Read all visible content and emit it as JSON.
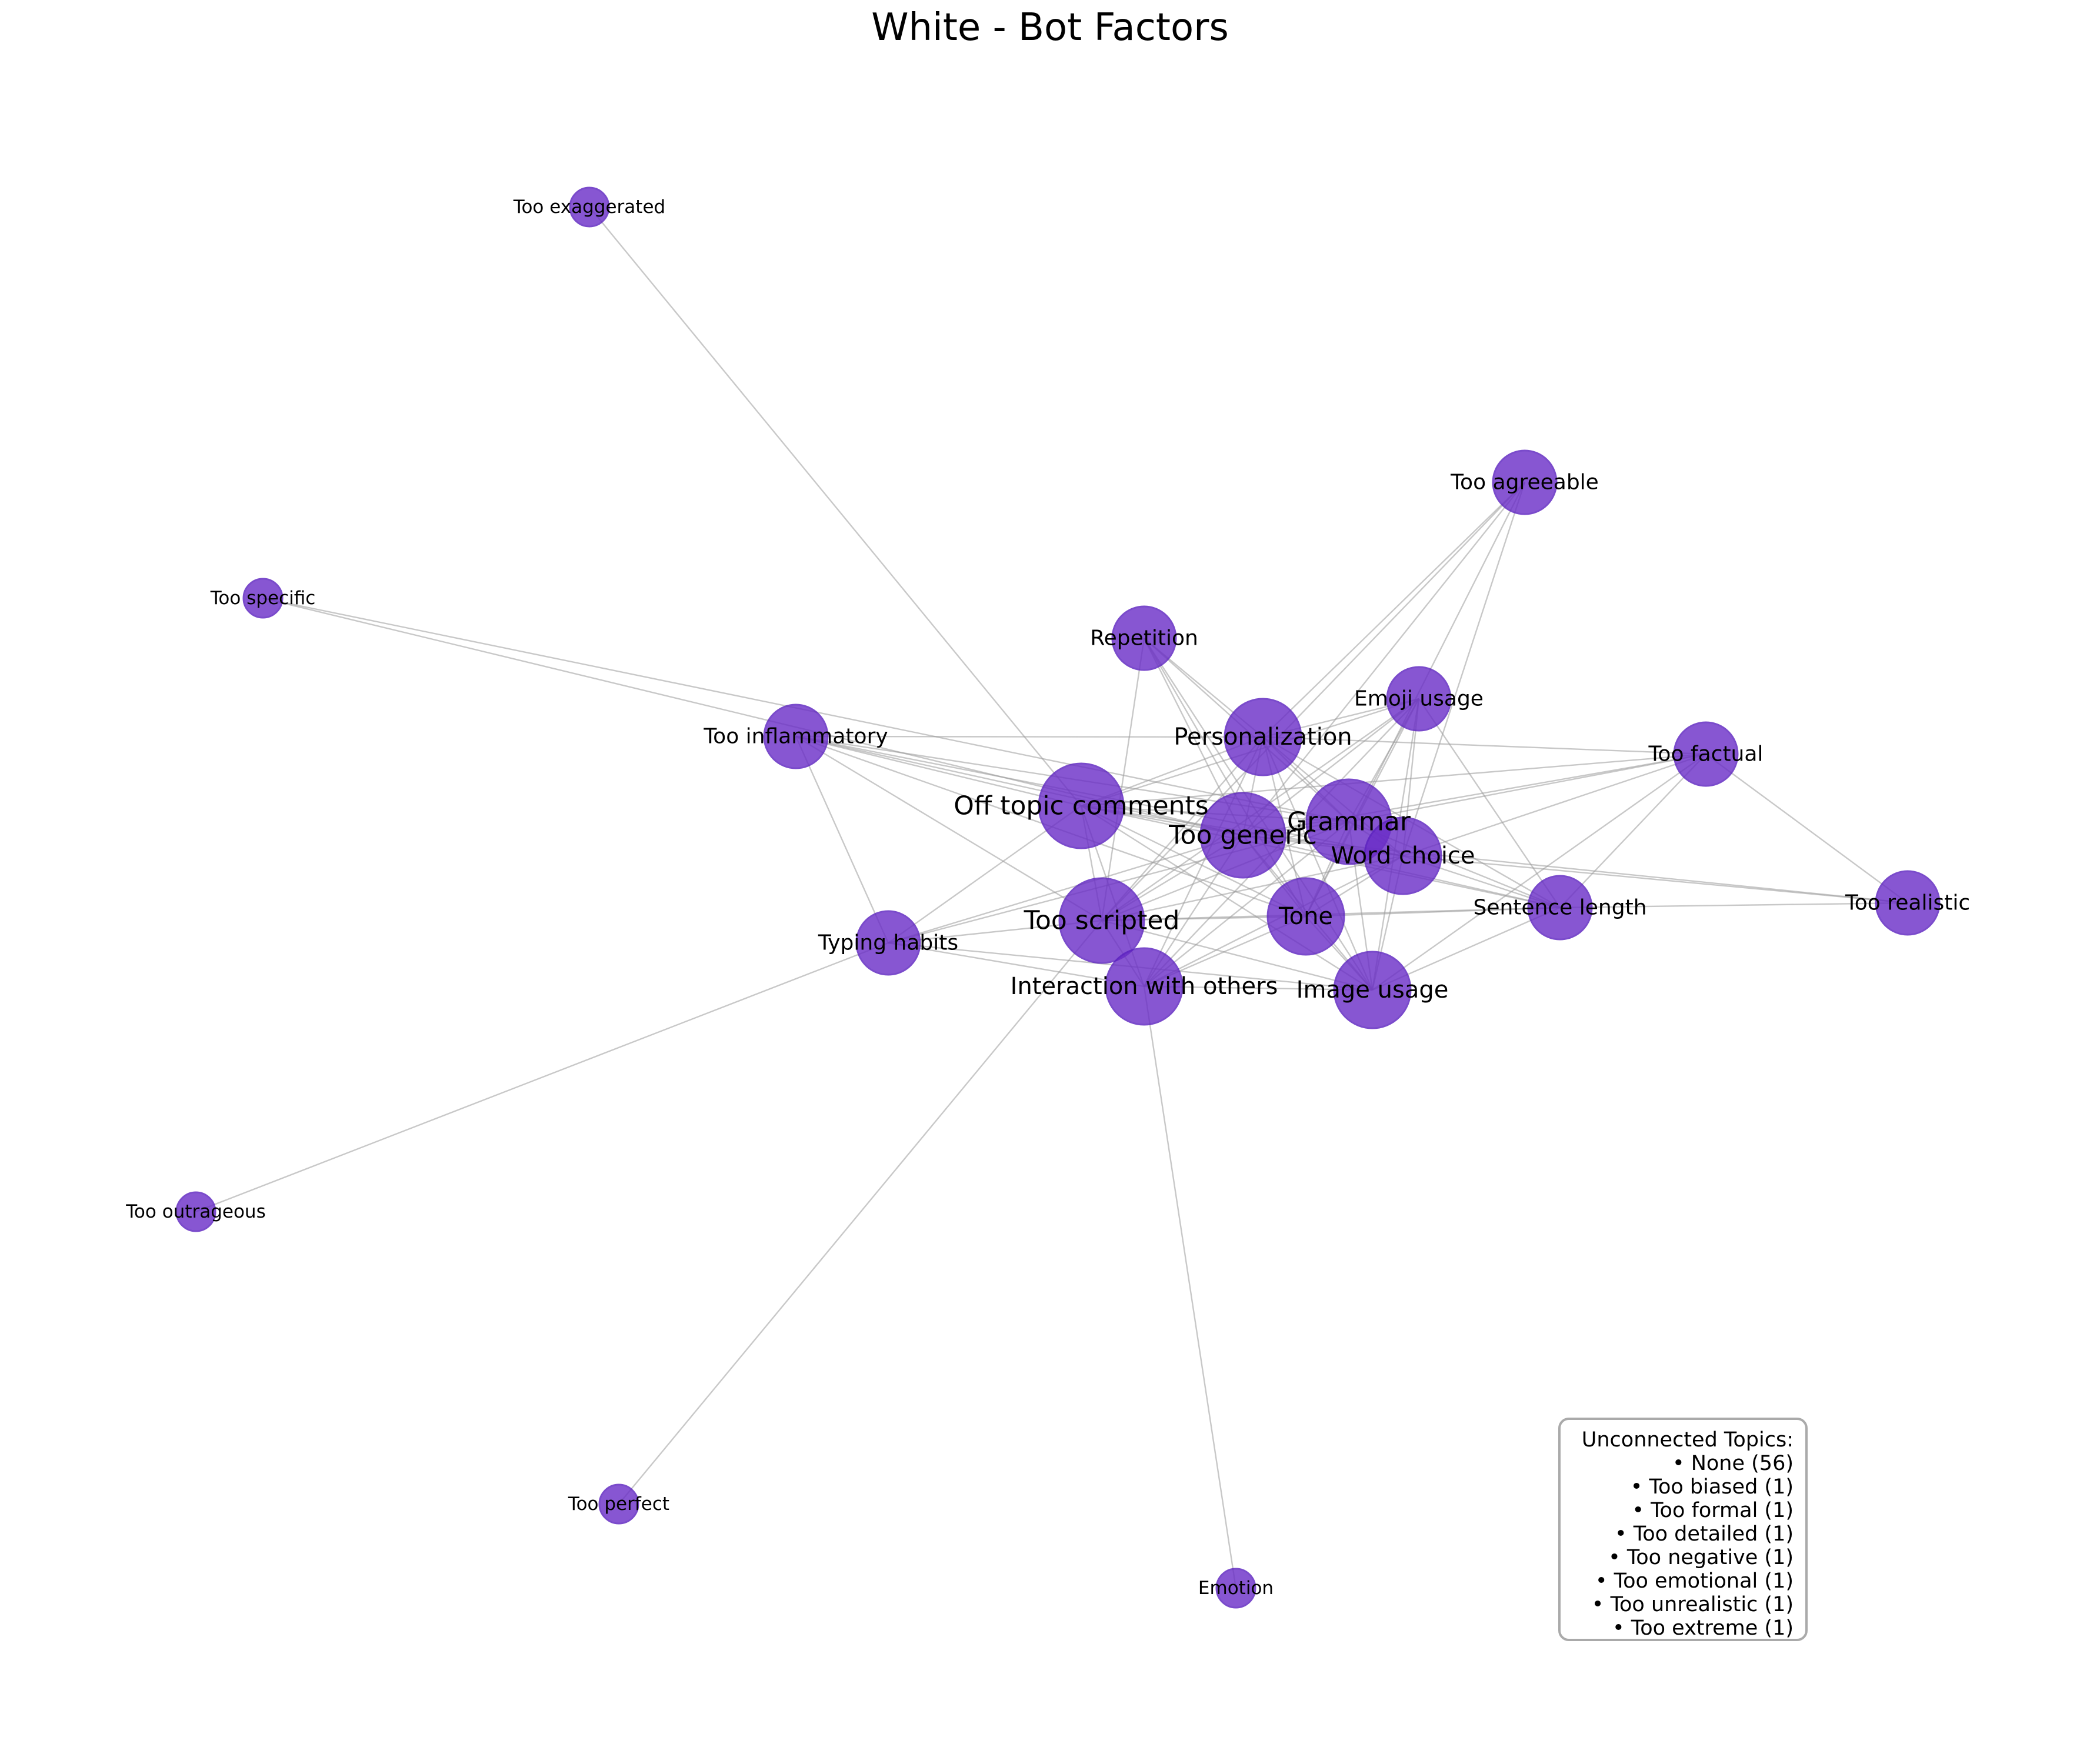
{
  "title": "White - Bot Factors",
  "colors": {
    "node_fill": "#6a2cc7",
    "node_stroke": "#5a1fbf",
    "edge": "#9a9a9a",
    "legend_border": "#aaaaaa"
  },
  "nodes": [
    {
      "id": "too-exaggerated",
      "label": "Too exaggerated",
      "size": "small"
    },
    {
      "id": "too-agreeable",
      "label": "Too agreeable",
      "size": "medium"
    },
    {
      "id": "too-specific",
      "label": "Too specific",
      "size": "small"
    },
    {
      "id": "repetition",
      "label": "Repetition",
      "size": "medium"
    },
    {
      "id": "emoji-usage",
      "label": "Emoji usage",
      "size": "medium"
    },
    {
      "id": "too-inflammatory",
      "label": "Too inflammatory",
      "size": "medium"
    },
    {
      "id": "personalization",
      "label": "Personalization",
      "size": "large"
    },
    {
      "id": "too-factual",
      "label": "Too factual",
      "size": "medium"
    },
    {
      "id": "off-topic-comments",
      "label": "Off topic comments",
      "size": "xlarge"
    },
    {
      "id": "grammar",
      "label": "Grammar",
      "size": "xlarge"
    },
    {
      "id": "too-generic",
      "label": "Too generic",
      "size": "xlarge"
    },
    {
      "id": "word-choice",
      "label": "Word choice",
      "size": "large"
    },
    {
      "id": "too-realistic",
      "label": "Too realistic",
      "size": "medium"
    },
    {
      "id": "sentence-length",
      "label": "Sentence length",
      "size": "medium"
    },
    {
      "id": "tone",
      "label": "Tone",
      "size": "large"
    },
    {
      "id": "too-scripted",
      "label": "Too scripted",
      "size": "xlarge"
    },
    {
      "id": "typing-habits",
      "label": "Typing habits",
      "size": "medium"
    },
    {
      "id": "interaction-with-others",
      "label": "Interaction with others",
      "size": "large"
    },
    {
      "id": "image-usage",
      "label": "Image usage",
      "size": "large"
    },
    {
      "id": "too-outrageous",
      "label": "Too outrageous",
      "size": "small"
    },
    {
      "id": "too-perfect",
      "label": "Too perfect",
      "size": "small"
    },
    {
      "id": "emotion",
      "label": "Emotion",
      "size": "small"
    }
  ],
  "edges": [
    [
      "too-exaggerated",
      "off-topic-comments"
    ],
    [
      "too-specific",
      "too-generic"
    ],
    [
      "too-specific",
      "grammar"
    ],
    [
      "too-agreeable",
      "personalization"
    ],
    [
      "too-agreeable",
      "too-generic"
    ],
    [
      "too-agreeable",
      "word-choice"
    ],
    [
      "too-agreeable",
      "too-scripted"
    ],
    [
      "too-agreeable",
      "tone"
    ],
    [
      "repetition",
      "personalization"
    ],
    [
      "repetition",
      "too-generic"
    ],
    [
      "repetition",
      "grammar"
    ],
    [
      "repetition",
      "too-scripted"
    ],
    [
      "repetition",
      "tone"
    ],
    [
      "repetition",
      "image-usage"
    ],
    [
      "emoji-usage",
      "personalization"
    ],
    [
      "emoji-usage",
      "too-generic"
    ],
    [
      "emoji-usage",
      "grammar"
    ],
    [
      "emoji-usage",
      "word-choice"
    ],
    [
      "emoji-usage",
      "tone"
    ],
    [
      "emoji-usage",
      "too-scripted"
    ],
    [
      "emoji-usage",
      "image-usage"
    ],
    [
      "emoji-usage",
      "interaction-with-others"
    ],
    [
      "emoji-usage",
      "off-topic-comments"
    ],
    [
      "emoji-usage",
      "sentence-length"
    ],
    [
      "too-inflammatory",
      "off-topic-comments"
    ],
    [
      "too-inflammatory",
      "too-generic"
    ],
    [
      "too-inflammatory",
      "grammar"
    ],
    [
      "too-inflammatory",
      "personalization"
    ],
    [
      "too-inflammatory",
      "too-scripted"
    ],
    [
      "too-inflammatory",
      "typing-habits"
    ],
    [
      "too-inflammatory",
      "tone"
    ],
    [
      "too-inflammatory",
      "word-choice"
    ],
    [
      "personalization",
      "off-topic-comments"
    ],
    [
      "personalization",
      "too-generic"
    ],
    [
      "personalization",
      "grammar"
    ],
    [
      "personalization",
      "word-choice"
    ],
    [
      "personalization",
      "too-scripted"
    ],
    [
      "personalization",
      "tone"
    ],
    [
      "personalization",
      "image-usage"
    ],
    [
      "personalization",
      "interaction-with-others"
    ],
    [
      "personalization",
      "too-factual"
    ],
    [
      "personalization",
      "sentence-length"
    ],
    [
      "too-factual",
      "grammar"
    ],
    [
      "too-factual",
      "off-topic-comments"
    ],
    [
      "too-factual",
      "too-generic"
    ],
    [
      "too-factual",
      "too-realistic"
    ],
    [
      "too-factual",
      "sentence-length"
    ],
    [
      "too-factual",
      "image-usage"
    ],
    [
      "too-factual",
      "word-choice"
    ],
    [
      "off-topic-comments",
      "too-generic"
    ],
    [
      "off-topic-comments",
      "grammar"
    ],
    [
      "off-topic-comments",
      "word-choice"
    ],
    [
      "off-topic-comments",
      "too-scripted"
    ],
    [
      "off-topic-comments",
      "tone"
    ],
    [
      "off-topic-comments",
      "interaction-with-others"
    ],
    [
      "off-topic-comments",
      "image-usage"
    ],
    [
      "off-topic-comments",
      "typing-habits"
    ],
    [
      "off-topic-comments",
      "sentence-length"
    ],
    [
      "too-generic",
      "grammar"
    ],
    [
      "too-generic",
      "word-choice"
    ],
    [
      "too-generic",
      "too-scripted"
    ],
    [
      "too-generic",
      "tone"
    ],
    [
      "too-generic",
      "interaction-with-others"
    ],
    [
      "too-generic",
      "image-usage"
    ],
    [
      "too-generic",
      "sentence-length"
    ],
    [
      "too-generic",
      "typing-habits"
    ],
    [
      "too-generic",
      "too-realistic"
    ],
    [
      "grammar",
      "word-choice"
    ],
    [
      "grammar",
      "too-scripted"
    ],
    [
      "grammar",
      "tone"
    ],
    [
      "grammar",
      "image-usage"
    ],
    [
      "grammar",
      "interaction-with-others"
    ],
    [
      "grammar",
      "sentence-length"
    ],
    [
      "grammar",
      "typing-habits"
    ],
    [
      "word-choice",
      "too-scripted"
    ],
    [
      "word-choice",
      "tone"
    ],
    [
      "word-choice",
      "image-usage"
    ],
    [
      "word-choice",
      "interaction-with-others"
    ],
    [
      "word-choice",
      "sentence-length"
    ],
    [
      "word-choice",
      "too-realistic"
    ],
    [
      "sentence-length",
      "too-realistic"
    ],
    [
      "sentence-length",
      "tone"
    ],
    [
      "sentence-length",
      "too-scripted"
    ],
    [
      "sentence-length",
      "image-usage"
    ],
    [
      "tone",
      "too-scripted"
    ],
    [
      "tone",
      "interaction-with-others"
    ],
    [
      "tone",
      "image-usage"
    ],
    [
      "too-scripted",
      "interaction-with-others"
    ],
    [
      "too-scripted",
      "typing-habits"
    ],
    [
      "too-scripted",
      "image-usage"
    ],
    [
      "too-scripted",
      "too-perfect"
    ],
    [
      "typing-habits",
      "interaction-with-others"
    ],
    [
      "typing-habits",
      "image-usage"
    ],
    [
      "typing-habits",
      "too-outrageous"
    ],
    [
      "interaction-with-others",
      "image-usage"
    ],
    [
      "interaction-with-others",
      "emotion"
    ]
  ],
  "legend": {
    "heading": "Unconnected Topics:",
    "items": [
      "• None (56)",
      "• Too biased (1)",
      "• Too formal (1)",
      "• Too detailed (1)",
      "• Too negative (1)",
      "• Too emotional (1)",
      "• Too unrealistic (1)",
      "• Too extreme (1)"
    ]
  }
}
